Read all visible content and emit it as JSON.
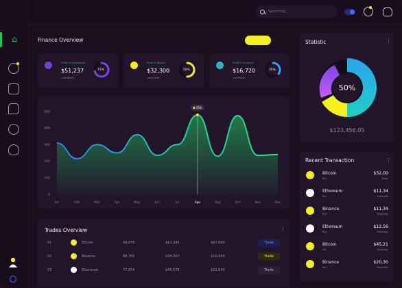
{
  "search": {
    "placeholder": "Searching..."
  },
  "finance": {
    "title": "Finance Overview",
    "button_label": ""
  },
  "cards": [
    {
      "label": "Profit in investment",
      "value": "$51,237",
      "note": "Last Month",
      "percent": "71%",
      "fraction": 0.71,
      "ring_color": "#7a45e8",
      "coin_color": "#6f3fd6"
    },
    {
      "label": "Profit in Bitcoin",
      "value": "$32,300",
      "note": "Last Month",
      "percent": "50%",
      "fraction": 0.5,
      "ring_color": "#f4f01c",
      "coin_color": "#f4f01c"
    },
    {
      "label": "Profit in currency",
      "value": "$16,720",
      "note": "Last Month",
      "percent": "35%",
      "fraction": 0.35,
      "ring_color": "#2aa4f0",
      "coin_color": "#28b7c9"
    }
  ],
  "chart_data": {
    "type": "area",
    "categories": [
      "Jan",
      "Feb",
      "Mar",
      "Apr",
      "May",
      "Jun",
      "Jul",
      "Agu",
      "Sep",
      "Oct",
      "Nov",
      "Dec"
    ],
    "values": [
      310,
      215,
      300,
      250,
      360,
      235,
      300,
      480,
      230,
      475,
      235,
      240
    ],
    "ylim": [
      0,
      500
    ],
    "yticks": [
      "0",
      "100",
      "200",
      "300",
      "400",
      "500"
    ],
    "highlight_index": 7,
    "highlight_label": "25k",
    "grid": true
  },
  "trades": {
    "title": "Trades Overview",
    "rows": [
      {
        "num": "01",
        "coin": "Bitcoin",
        "c1": "99,876",
        "c2": "$12,345",
        "c3": "$67,890",
        "action": "Trade",
        "coin_color": "#f4f01c",
        "style": "blue"
      },
      {
        "num": "02",
        "coin": "Binance",
        "c1": "88,765",
        "c2": "$34,567",
        "c3": "$10,999",
        "action": "Trade",
        "coin_color": "#f4f01c",
        "style": "yellow"
      },
      {
        "num": "03",
        "coin": "Ethereum",
        "c1": "77,654",
        "c2": "$45,678",
        "c3": "$22,543",
        "action": "Trade",
        "coin_color": "#ffffff",
        "style": "dark"
      }
    ]
  },
  "statistic": {
    "title": "Statistic",
    "center": "50%",
    "total": "$123,456.05"
  },
  "recent": {
    "title": "Recent Transaction",
    "items": [
      {
        "name": "Bitcoin",
        "sub": "Buy",
        "amount": "$32,00",
        "date": "Today",
        "color": "#f4f01c"
      },
      {
        "name": "Ethereum",
        "sub": "Buy",
        "amount": "$11,34",
        "date": "Yesterday",
        "color": "#ffffff"
      },
      {
        "name": "Binance",
        "sub": "Buy",
        "amount": "$11,34",
        "date": "Yesterday",
        "color": "#f4f01c"
      },
      {
        "name": "Ethereum",
        "sub": "Buy",
        "amount": "$12,56",
        "date": "Yesterday",
        "color": "#ffffff"
      },
      {
        "name": "Bitcoin",
        "sub": "Sell",
        "amount": "$45,21",
        "date": "Yesterday",
        "color": "#f4f01c"
      },
      {
        "name": "Binance",
        "sub": "Sell",
        "amount": "$20,30",
        "date": "Yesterday",
        "color": "#f4f01c"
      }
    ]
  },
  "colors": {
    "accent_green": "#20c45a",
    "accent_yellow": "#f4f01c",
    "accent_blue": "#2aa4f0"
  }
}
